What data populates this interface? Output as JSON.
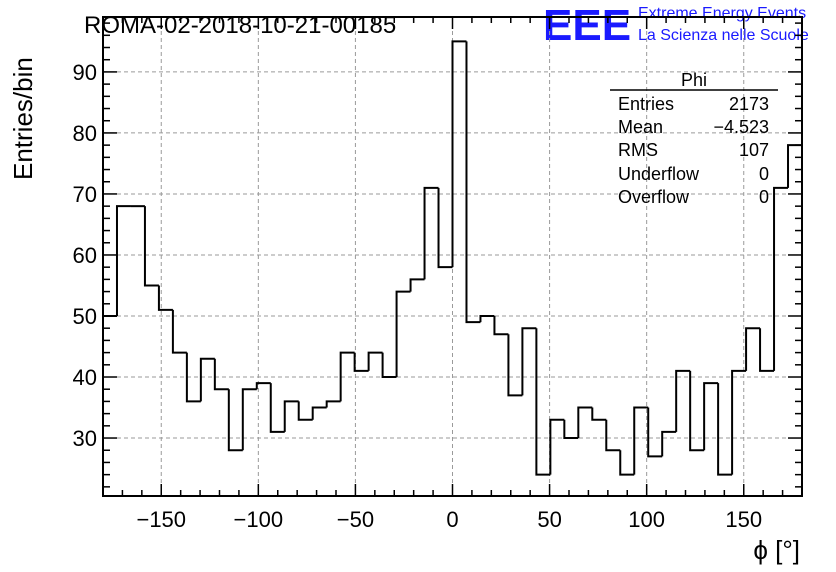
{
  "chart_data": {
    "type": "histogram",
    "title": "ROMA-02-2018-10-21-00185",
    "xlabel": "ϕ [°]",
    "ylabel": "Entries/bin",
    "xlim": [
      -180,
      180
    ],
    "ylim": [
      20.5,
      99
    ],
    "xticks": [
      -150,
      -100,
      -50,
      0,
      50,
      100,
      150
    ],
    "xtick_labels": [
      "−150",
      "−100",
      "−50",
      "0",
      "50",
      "100",
      "150"
    ],
    "yticks": [
      30,
      40,
      50,
      60,
      70,
      80,
      90
    ],
    "yticks_labels": [
      "30",
      "40",
      "50",
      "60",
      "70",
      "80",
      "90"
    ],
    "grid": true,
    "bin_width": 7.2,
    "bin_edges_start": -180,
    "values": [
      50,
      68,
      68,
      55,
      51,
      44,
      36,
      43,
      38,
      28,
      38,
      39,
      31,
      36,
      33,
      35,
      36,
      44,
      41,
      44,
      40,
      54,
      56,
      71,
      58,
      95,
      49,
      50,
      47,
      37,
      48,
      24,
      33,
      30,
      35,
      33,
      28,
      24,
      35,
      27,
      31,
      41,
      28,
      39,
      24,
      41,
      48,
      41,
      71,
      78
    ],
    "series": [
      {
        "name": "Phi"
      }
    ],
    "stats_box": {
      "title": "Phi",
      "rows": [
        {
          "label": "Entries",
          "value": "2173"
        },
        {
          "label": "Mean",
          "value": "−4.523"
        },
        {
          "label": "RMS",
          "value": "107"
        },
        {
          "label": "Underflow",
          "value": "0"
        },
        {
          "label": "Overflow",
          "value": "0"
        }
      ]
    }
  },
  "logo": {
    "mark": "EEE",
    "line1": "Extreme Energy Events",
    "line2": "La Scienza nelle Scuole"
  },
  "colors": {
    "logo": "#1a1aff",
    "line": "#000000",
    "grid": "#9a9a9a"
  }
}
